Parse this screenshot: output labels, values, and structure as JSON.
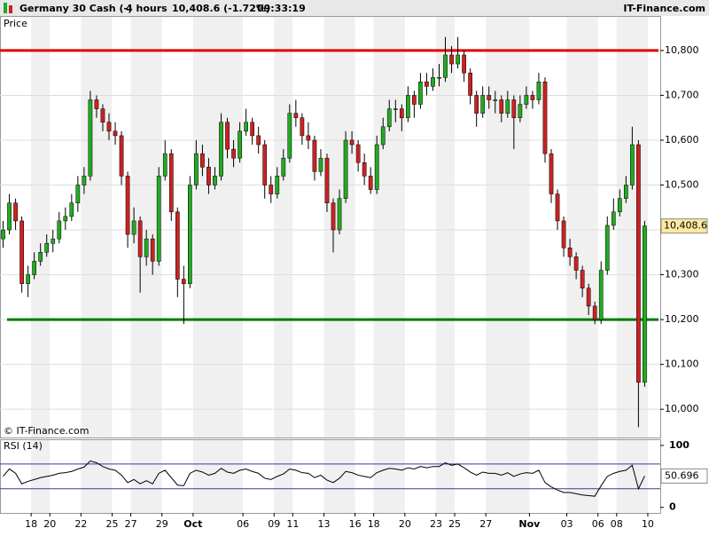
{
  "header": {
    "instrument": "Germany 30 Cash (-)",
    "timeframe": "4 hours",
    "quote": "10,408.6 (-1.72%)",
    "time": "09:33:19",
    "site": "IT-Finance.com"
  },
  "chart_data": [
    {
      "type": "candlestick",
      "title": "Price",
      "copyright": "© IT-Finance.com",
      "up_color": "#22aa22",
      "down_color": "#cc2222",
      "grid": true,
      "xlim": [
        0,
        106
      ],
      "ylim": [
        9937,
        10877
      ],
      "yticks": [
        {
          "value": 10000,
          "label": "10,000"
        },
        {
          "value": 10100,
          "label": "10,100"
        },
        {
          "value": 10200,
          "label": "10,200"
        },
        {
          "value": 10300,
          "label": "10,300"
        },
        {
          "value": 10400,
          "label": "10,400"
        },
        {
          "value": 10500,
          "label": "10,500"
        },
        {
          "value": 10600,
          "label": "10,600"
        },
        {
          "value": 10700,
          "label": "10,700"
        },
        {
          "value": 10800,
          "label": "10,800"
        }
      ],
      "xticks": [
        {
          "value": 5,
          "label": "18"
        },
        {
          "value": 8,
          "label": "20"
        },
        {
          "value": 13,
          "label": "22"
        },
        {
          "value": 18,
          "label": "25"
        },
        {
          "value": 21,
          "label": "27"
        },
        {
          "value": 26,
          "label": "29"
        },
        {
          "value": 31,
          "label": "Oct"
        },
        {
          "value": 39,
          "label": "06"
        },
        {
          "value": 44,
          "label": "09"
        },
        {
          "value": 47,
          "label": "11"
        },
        {
          "value": 52,
          "label": "13"
        },
        {
          "value": 57,
          "label": "16"
        },
        {
          "value": 60,
          "label": "18"
        },
        {
          "value": 65,
          "label": "20"
        },
        {
          "value": 70,
          "label": "23"
        },
        {
          "value": 73,
          "label": "25"
        },
        {
          "value": 78,
          "label": "27"
        },
        {
          "value": 85,
          "label": "Nov"
        },
        {
          "value": 91,
          "label": "03"
        },
        {
          "value": 96,
          "label": "06"
        },
        {
          "value": 99,
          "label": "08"
        },
        {
          "value": 104,
          "label": "10"
        }
      ],
      "hlines": [
        {
          "value": 10800,
          "color": "#e00000"
        },
        {
          "value": 10200,
          "color": "#007a00"
        }
      ],
      "last_label": "10,408.6",
      "candles": [
        [
          10380,
          10420,
          10360,
          10400
        ],
        [
          10400,
          10480,
          10390,
          10460
        ],
        [
          10460,
          10470,
          10400,
          10420
        ],
        [
          10420,
          10430,
          10260,
          10280
        ],
        [
          10280,
          10320,
          10250,
          10300
        ],
        [
          10300,
          10350,
          10290,
          10330
        ],
        [
          10330,
          10370,
          10320,
          10350
        ],
        [
          10350,
          10390,
          10340,
          10370
        ],
        [
          10370,
          10400,
          10350,
          10380
        ],
        [
          10380,
          10440,
          10370,
          10420
        ],
        [
          10420,
          10450,
          10400,
          10430
        ],
        [
          10430,
          10480,
          10420,
          10460
        ],
        [
          10460,
          10520,
          10440,
          10500
        ],
        [
          10500,
          10540,
          10480,
          10520
        ],
        [
          10520,
          10710,
          10510,
          10690
        ],
        [
          10690,
          10700,
          10650,
          10670
        ],
        [
          10670,
          10680,
          10620,
          10640
        ],
        [
          10640,
          10660,
          10600,
          10620
        ],
        [
          10620,
          10640,
          10590,
          10610
        ],
        [
          10610,
          10620,
          10500,
          10520
        ],
        [
          10520,
          10530,
          10360,
          10390
        ],
        [
          10390,
          10450,
          10370,
          10420
        ],
        [
          10420,
          10430,
          10260,
          10340
        ],
        [
          10340,
          10400,
          10320,
          10380
        ],
        [
          10380,
          10390,
          10300,
          10330
        ],
        [
          10330,
          10540,
          10320,
          10520
        ],
        [
          10520,
          10600,
          10510,
          10570
        ],
        [
          10570,
          10580,
          10420,
          10440
        ],
        [
          10440,
          10450,
          10250,
          10290
        ],
        [
          10290,
          10320,
          10190,
          10280
        ],
        [
          10280,
          10520,
          10270,
          10500
        ],
        [
          10500,
          10600,
          10490,
          10570
        ],
        [
          10570,
          10590,
          10520,
          10540
        ],
        [
          10540,
          10560,
          10480,
          10500
        ],
        [
          10500,
          10540,
          10490,
          10520
        ],
        [
          10520,
          10660,
          10510,
          10640
        ],
        [
          10640,
          10650,
          10560,
          10580
        ],
        [
          10580,
          10600,
          10540,
          10560
        ],
        [
          10560,
          10640,
          10550,
          10620
        ],
        [
          10620,
          10670,
          10610,
          10640
        ],
        [
          10640,
          10650,
          10590,
          10610
        ],
        [
          10610,
          10630,
          10570,
          10590
        ],
        [
          10590,
          10600,
          10470,
          10500
        ],
        [
          10500,
          10520,
          10460,
          10480
        ],
        [
          10480,
          10540,
          10470,
          10520
        ],
        [
          10520,
          10580,
          10510,
          10560
        ],
        [
          10560,
          10680,
          10550,
          10660
        ],
        [
          10660,
          10690,
          10630,
          10650
        ],
        [
          10650,
          10660,
          10590,
          10610
        ],
        [
          10610,
          10640,
          10580,
          10600
        ],
        [
          10600,
          10610,
          10510,
          10530
        ],
        [
          10530,
          10580,
          10520,
          10560
        ],
        [
          10560,
          10570,
          10440,
          10460
        ],
        [
          10460,
          10470,
          10350,
          10400
        ],
        [
          10400,
          10490,
          10390,
          10470
        ],
        [
          10470,
          10620,
          10460,
          10600
        ],
        [
          10600,
          10620,
          10570,
          10590
        ],
        [
          10590,
          10600,
          10530,
          10550
        ],
        [
          10550,
          10570,
          10500,
          10520
        ],
        [
          10520,
          10540,
          10480,
          10490
        ],
        [
          10490,
          10610,
          10480,
          10590
        ],
        [
          10590,
          10650,
          10580,
          10630
        ],
        [
          10630,
          10690,
          10620,
          10670
        ],
        [
          10670,
          10690,
          10640,
          10670
        ],
        [
          10670,
          10680,
          10620,
          10650
        ],
        [
          10650,
          10720,
          10640,
          10700
        ],
        [
          10700,
          10710,
          10650,
          10680
        ],
        [
          10680,
          10750,
          10670,
          10730
        ],
        [
          10730,
          10750,
          10700,
          10720
        ],
        [
          10720,
          10760,
          10710,
          10740
        ],
        [
          10740,
          10770,
          10720,
          10740
        ],
        [
          10740,
          10830,
          10730,
          10790
        ],
        [
          10790,
          10810,
          10750,
          10770
        ],
        [
          10770,
          10830,
          10760,
          10790
        ],
        [
          10790,
          10800,
          10730,
          10750
        ],
        [
          10750,
          10760,
          10680,
          10700
        ],
        [
          10700,
          10710,
          10630,
          10660
        ],
        [
          10660,
          10720,
          10650,
          10700
        ],
        [
          10700,
          10720,
          10670,
          10690
        ],
        [
          10690,
          10710,
          10660,
          10690
        ],
        [
          10690,
          10700,
          10640,
          10660
        ],
        [
          10660,
          10710,
          10650,
          10690
        ],
        [
          10690,
          10700,
          10580,
          10650
        ],
        [
          10650,
          10700,
          10640,
          10680
        ],
        [
          10680,
          10720,
          10670,
          10700
        ],
        [
          10700,
          10710,
          10670,
          10690
        ],
        [
          10690,
          10750,
          10680,
          10730
        ],
        [
          10730,
          10740,
          10550,
          10570
        ],
        [
          10570,
          10580,
          10460,
          10480
        ],
        [
          10480,
          10490,
          10400,
          10420
        ],
        [
          10420,
          10430,
          10340,
          10360
        ],
        [
          10360,
          10380,
          10320,
          10340
        ],
        [
          10340,
          10350,
          10290,
          10310
        ],
        [
          10310,
          10320,
          10250,
          10270
        ],
        [
          10270,
          10280,
          10210,
          10230
        ],
        [
          10230,
          10240,
          10190,
          10200
        ],
        [
          10200,
          10330,
          10190,
          10310
        ],
        [
          10310,
          10430,
          10300,
          10410
        ],
        [
          10410,
          10470,
          10400,
          10440
        ],
        [
          10440,
          10490,
          10430,
          10470
        ],
        [
          10470,
          10520,
          10460,
          10500
        ],
        [
          10500,
          10630,
          10490,
          10590
        ],
        [
          10590,
          10600,
          9960,
          10060
        ],
        [
          10060,
          10420,
          10050,
          10408.6
        ]
      ]
    },
    {
      "type": "line",
      "title": "RSI (14)",
      "xlim": [
        0,
        106
      ],
      "ylim": [
        -9,
        110
      ],
      "yticks": [
        0,
        100
      ],
      "levels": [
        30,
        70
      ],
      "level_color": "#3a3aa0",
      "series": [
        {
          "color": "#000000",
          "values": [
            50,
            62,
            55,
            38,
            42,
            45,
            48,
            50,
            52,
            55,
            56,
            58,
            62,
            65,
            75,
            72,
            66,
            62,
            60,
            52,
            40,
            45,
            38,
            43,
            38,
            55,
            60,
            48,
            36,
            35,
            55,
            60,
            57,
            52,
            55,
            63,
            57,
            55,
            60,
            62,
            58,
            55,
            47,
            45,
            50,
            54,
            62,
            60,
            56,
            55,
            48,
            52,
            44,
            40,
            47,
            58,
            56,
            52,
            50,
            48,
            56,
            60,
            63,
            62,
            60,
            64,
            62,
            66,
            64,
            66,
            66,
            72,
            68,
            70,
            64,
            57,
            52,
            57,
            55,
            55,
            52,
            56,
            50,
            54,
            56,
            55,
            60,
            40,
            33,
            28,
            24,
            24,
            22,
            20,
            19,
            18,
            35,
            50,
            55,
            58,
            60,
            68,
            30,
            50.696
          ]
        }
      ]
    }
  ]
}
